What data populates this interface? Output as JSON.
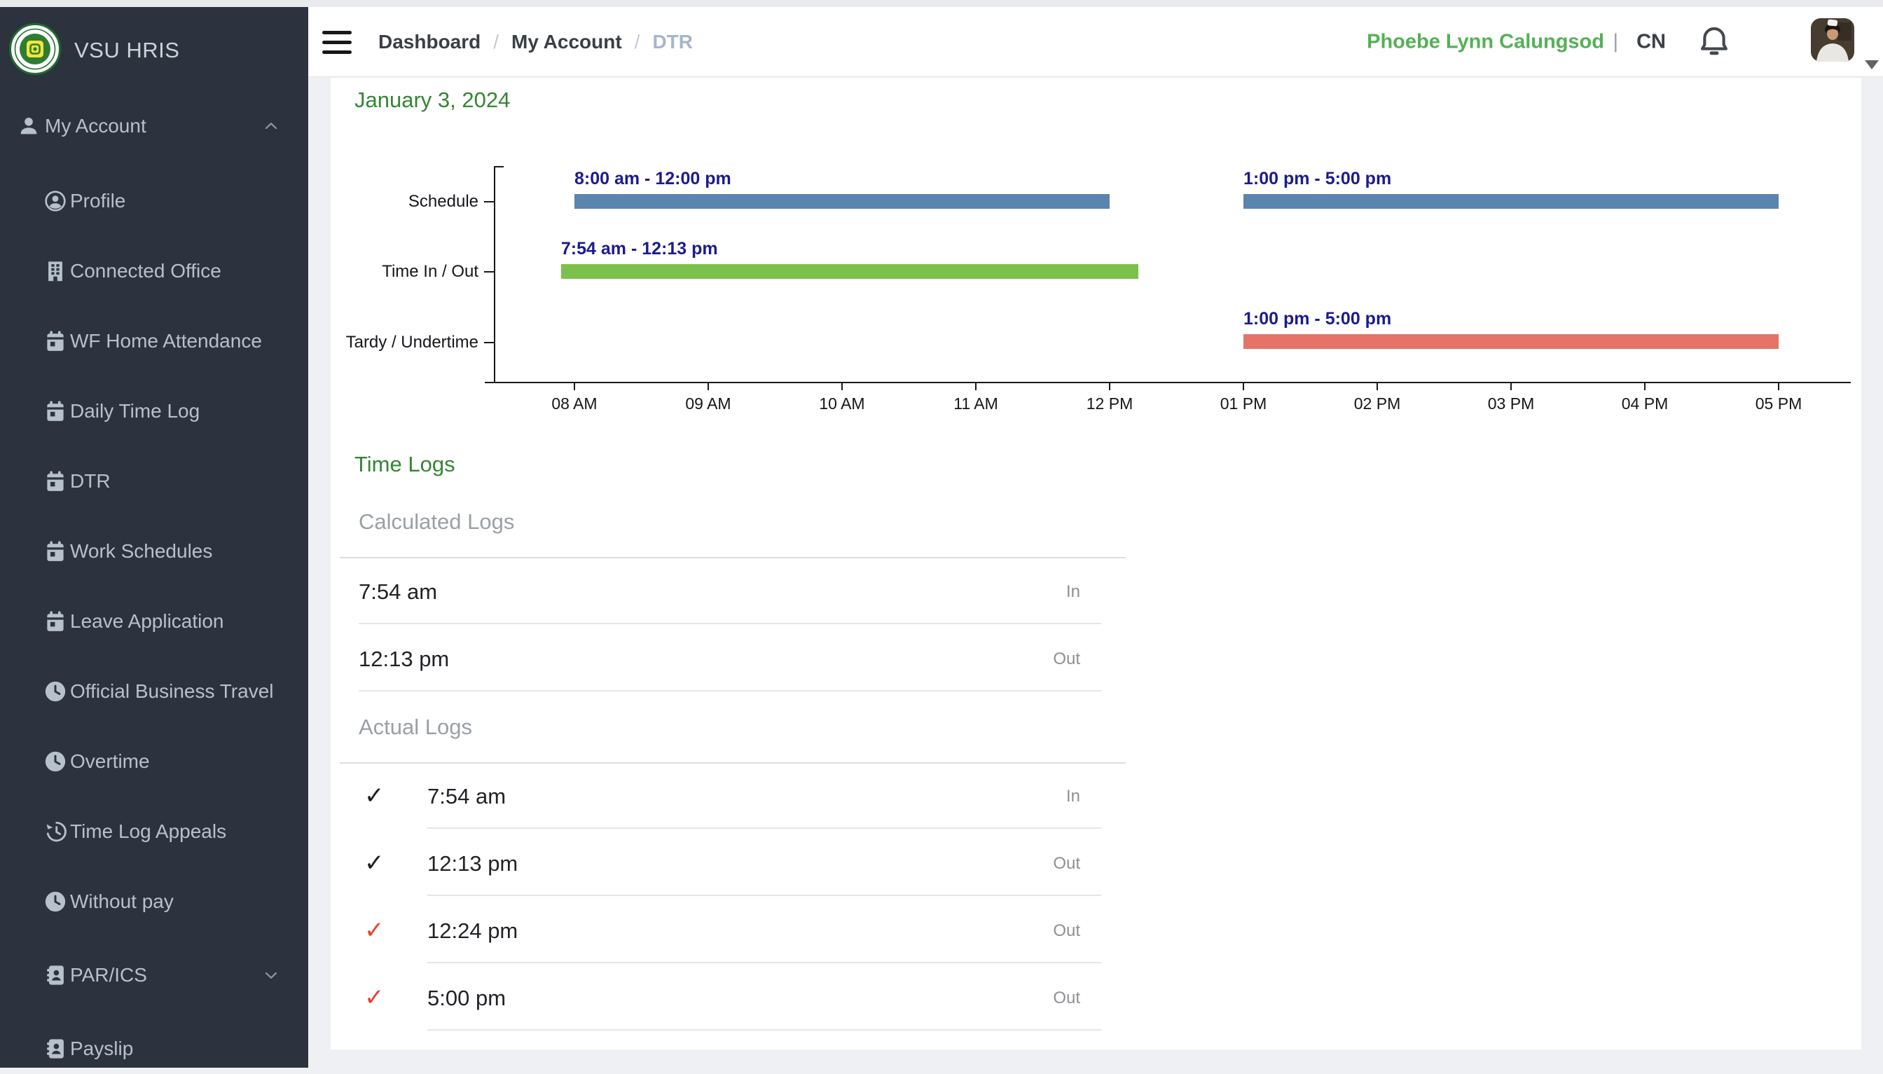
{
  "sidebar": {
    "brand": "VSU HRIS",
    "group": {
      "label": "My Account",
      "icon": "person",
      "chevron": "up"
    },
    "items": [
      {
        "label": "Profile",
        "icon": "person-circle"
      },
      {
        "label": "Connected Office",
        "icon": "building"
      },
      {
        "label": "WF Home Attendance",
        "icon": "calendar"
      },
      {
        "label": "Daily Time Log",
        "icon": "calendar"
      },
      {
        "label": "DTR",
        "icon": "calendar"
      },
      {
        "label": "Work Schedules",
        "icon": "calendar"
      },
      {
        "label": "Leave Application",
        "icon": "calendar"
      },
      {
        "label": "Official Business Travel",
        "icon": "clock"
      },
      {
        "label": "Overtime",
        "icon": "clock"
      },
      {
        "label": "Time Log Appeals",
        "icon": "history"
      },
      {
        "label": "Without pay",
        "icon": "clock"
      },
      {
        "label": "PAR/ICS",
        "icon": "address-book",
        "chevron": "down"
      },
      {
        "label": "Payslip",
        "icon": "address-book"
      }
    ]
  },
  "header": {
    "separator": "/",
    "breadcrumbs": [
      {
        "label": "Dashboard",
        "current": false
      },
      {
        "label": "My Account",
        "current": false
      },
      {
        "label": "DTR",
        "current": true
      }
    ],
    "user": {
      "name": "Phoebe Lynn Calungsod",
      "divider": "|",
      "role": "CN"
    }
  },
  "content": {
    "date_title": "January 3, 2024",
    "time_logs_title": "Time Logs",
    "calculated": {
      "title": "Calculated Logs",
      "rows": [
        {
          "time": "7:54 am",
          "status": "In"
        },
        {
          "time": "12:13 pm",
          "status": "Out"
        }
      ]
    },
    "actual": {
      "title": "Actual Logs",
      "rows": [
        {
          "time": "7:54 am",
          "status": "In",
          "check": "dark"
        },
        {
          "time": "12:13 pm",
          "status": "Out",
          "check": "dark"
        },
        {
          "time": "12:24 pm",
          "status": "Out",
          "check": "red"
        },
        {
          "time": "5:00 pm",
          "status": "Out",
          "check": "red"
        }
      ]
    },
    "check_glyph": "✓"
  },
  "chart_data": {
    "type": "bar",
    "subtype": "gantt-timeline",
    "title": "January 3, 2024",
    "rows": [
      "Schedule",
      "Time In / Out",
      "Tardy / Undertime"
    ],
    "x_ticks": [
      "08 AM",
      "09 AM",
      "10 AM",
      "11 AM",
      "12 PM",
      "01 PM",
      "02 PM",
      "03 PM",
      "04 PM",
      "05 PM"
    ],
    "x_tick_hours": [
      8,
      9,
      10,
      11,
      12,
      13,
      14,
      15,
      16,
      17
    ],
    "x_range_hours": [
      7.38,
      17.55
    ],
    "grid": false,
    "legend": "none",
    "bars": [
      {
        "row": "Schedule",
        "label": "8:00 am - 12:00 pm",
        "start_hour": 8.0,
        "end_hour": 12.0,
        "color": "#5b84af"
      },
      {
        "row": "Schedule",
        "label": "1:00 pm - 5:00 pm",
        "start_hour": 13.0,
        "end_hour": 17.0,
        "color": "#5b84af"
      },
      {
        "row": "Time In / Out",
        "label": "7:54 am - 12:13 pm",
        "start_hour": 7.9,
        "end_hour": 12.217,
        "color": "#7cc14e"
      },
      {
        "row": "Tardy / Undertime",
        "label": "1:00 pm - 5:00 pm",
        "start_hour": 13.0,
        "end_hour": 17.0,
        "color": "#e57368"
      }
    ],
    "label_color": "#1b1b8e"
  },
  "colors": {
    "sidebar_bg": "#2c333e",
    "sidebar_text": "#b6c1cb",
    "heading_green": "#358535",
    "user_green": "#53b156",
    "check_dark": "#1d1d1d",
    "check_red": "#e8432e"
  }
}
